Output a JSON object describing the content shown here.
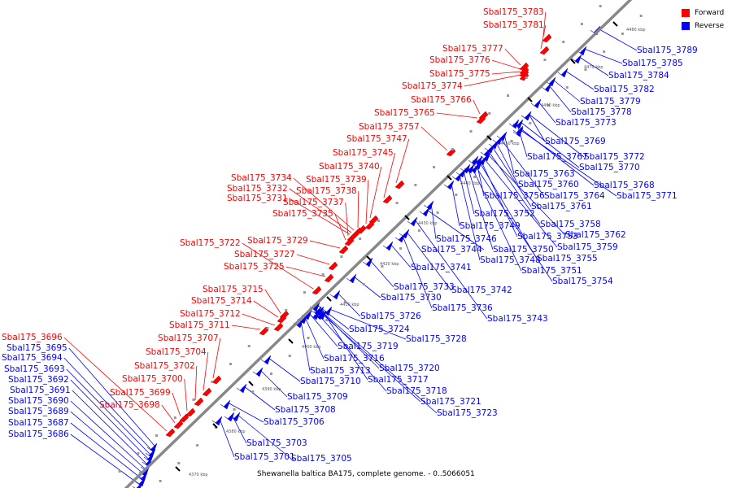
{
  "legend": {
    "forward_label": "Forward",
    "reverse_label": "Reverse",
    "forward_color": "#ff0000",
    "reverse_color": "#0000ff"
  },
  "caption": "Shewanella baltica BA175, complete genome. - 0..5066051",
  "ticks": [
    "4370 kbp",
    "4380 kbp",
    "4390 kbp",
    "4400 kbp",
    "4410 kbp",
    "4420 kbp",
    "4430 kbp",
    "4440 kbp",
    "4450 kbp",
    "4460 kbp",
    "4470 kbp",
    "4480 kbp"
  ],
  "forward_genes": [
    "Sbal175_3783",
    "Sbal175_3781",
    "Sbal175_3777",
    "Sbal175_3776",
    "Sbal175_3775",
    "Sbal175_3774",
    "Sbal175_3766",
    "Sbal175_3765",
    "Sbal175_3757",
    "Sbal175_3747",
    "Sbal175_3745",
    "Sbal175_3740",
    "Sbal175_3739",
    "Sbal175_3738",
    "Sbal175_3734",
    "Sbal175_3732",
    "Sbal175_3731",
    "Sbal175_3737",
    "Sbal175_3735",
    "Sbal175_3729",
    "Sbal175_3727",
    "Sbal175_3725",
    "Sbal175_3722",
    "Sbal175_3715",
    "Sbal175_3714",
    "Sbal175_3712",
    "Sbal175_3711",
    "Sbal175_3707",
    "Sbal175_3704",
    "Sbal175_3702",
    "Sbal175_3700",
    "Sbal175_3699",
    "Sbal175_3698",
    "Sbal175_3696"
  ],
  "reverse_genes": [
    "Sbal175_3695",
    "Sbal175_3694",
    "Sbal175_3693",
    "Sbal175_3692",
    "Sbal175_3691",
    "Sbal175_3690",
    "Sbal175_3689",
    "Sbal175_3687",
    "Sbal175_3686",
    "Sbal175_3789",
    "Sbal175_3785",
    "Sbal175_3784",
    "Sbal175_3782",
    "Sbal175_3779",
    "Sbal175_3778",
    "Sbal175_3773",
    "Sbal175_3769",
    "Sbal175_3767",
    "Sbal175_3772",
    "Sbal175_3770",
    "Sbal175_3763",
    "Sbal175_3768",
    "Sbal175_3760",
    "Sbal175_3771",
    "Sbal175_3764",
    "Sbal175_3756",
    "Sbal175_3761",
    "Sbal175_3752",
    "Sbal175_3758",
    "Sbal175_3762",
    "Sbal175_3749",
    "Sbal175_3753",
    "Sbal175_3746",
    "Sbal175_3759",
    "Sbal175_3744",
    "Sbal175_3750",
    "Sbal175_3755",
    "Sbal175_3748",
    "Sbal175_3751",
    "Sbal175_3741",
    "Sbal175_3754",
    "Sbal175_3733",
    "Sbal175_3742",
    "Sbal175_3730",
    "Sbal175_3736",
    "Sbal175_3726",
    "Sbal175_3743",
    "Sbal175_3724",
    "Sbal175_3728",
    "Sbal175_3719",
    "Sbal175_3716",
    "Sbal175_3720",
    "Sbal175_3713",
    "Sbal175_3717",
    "Sbal175_3710",
    "Sbal175_3718",
    "Sbal175_3709",
    "Sbal175_3721",
    "Sbal175_3708",
    "Sbal175_3723",
    "Sbal175_3706",
    "Sbal175_3703",
    "Sbal175_3701",
    "Sbal175_3705"
  ]
}
